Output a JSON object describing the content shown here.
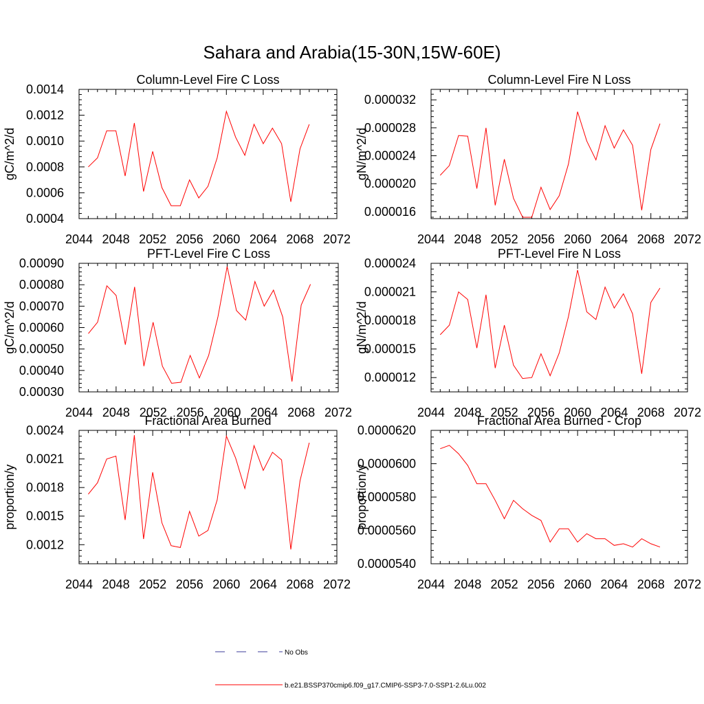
{
  "figure_title": "Sahara and Arabia(15-30N,15W-60E)",
  "colors": {
    "model_line": "#ff0000",
    "obs_line": "#3b3b9a",
    "axis": "#000000"
  },
  "legend": [
    {
      "label": "No Obs",
      "style": "dashed",
      "color": "#3b3b9a"
    },
    {
      "label": "b.e21.BSSP370cmip6.f09_g17.CMIP6-SSP3-7.0-SSP1-2.6Lu.002",
      "style": "solid",
      "color": "#ff0000"
    }
  ],
  "chart_data": [
    {
      "type": "line",
      "title": "Column-Level Fire C Loss",
      "ylabel": "gC/m^2/d",
      "xlim": [
        2044,
        2072
      ],
      "ylim": [
        0.0004,
        0.0014
      ],
      "xticks": [
        2044,
        2048,
        2052,
        2056,
        2060,
        2064,
        2068,
        2072
      ],
      "xtick_labels": [
        "2044",
        "2048",
        "2052",
        "2056",
        "2060",
        "2064",
        "2068",
        "2072"
      ],
      "yticks": [
        0.0004,
        0.0006,
        0.0008,
        0.001,
        0.0012,
        0.0014
      ],
      "ytick_labels": [
        "0.0004",
        "0.0006",
        "0.0008",
        "0.0010",
        "0.0012",
        "0.0014"
      ],
      "x": [
        2045,
        2046,
        2047,
        2048,
        2049,
        2050,
        2051,
        2052,
        2053,
        2054,
        2055,
        2056,
        2057,
        2058,
        2059,
        2060,
        2061,
        2062,
        2063,
        2064,
        2065,
        2066,
        2067,
        2068,
        2069
      ],
      "y": [
        0.0008,
        0.00087,
        0.00108,
        0.00108,
        0.00073,
        0.00114,
        0.00061,
        0.00092,
        0.00064,
        0.0005,
        0.0005,
        0.0007,
        0.00056,
        0.00065,
        0.00087,
        0.00123,
        0.00103,
        0.00089,
        0.00113,
        0.00098,
        0.0011,
        0.00098,
        0.00053,
        0.00094,
        0.00113
      ]
    },
    {
      "type": "line",
      "title": "Column-Level Fire N Loss",
      "ylabel": "gN/m^2/d",
      "xlim": [
        2044,
        2072
      ],
      "ylim": [
        1.5e-05,
        3.35e-05
      ],
      "xticks": [
        2044,
        2048,
        2052,
        2056,
        2060,
        2064,
        2068,
        2072
      ],
      "xtick_labels": [
        "2044",
        "2048",
        "2052",
        "2056",
        "2060",
        "2064",
        "2068",
        "2072"
      ],
      "yticks": [
        1.6e-05,
        2e-05,
        2.4e-05,
        2.8e-05,
        3.2e-05
      ],
      "ytick_labels": [
        "0.000016",
        "0.000020",
        "0.000024",
        "0.000028",
        "0.000032"
      ],
      "x": [
        2045,
        2046,
        2047,
        2048,
        2049,
        2050,
        2051,
        2052,
        2053,
        2054,
        2055,
        2056,
        2057,
        2058,
        2059,
        2060,
        2061,
        2062,
        2063,
        2064,
        2065,
        2066,
        2067,
        2068,
        2069
      ],
      "y": [
        2.12e-05,
        2.26e-05,
        2.69e-05,
        2.68e-05,
        1.93e-05,
        2.8e-05,
        1.69e-05,
        2.35e-05,
        1.79e-05,
        1.52e-05,
        1.52e-05,
        1.95e-05,
        1.63e-05,
        1.83e-05,
        2.28e-05,
        3.03e-05,
        2.61e-05,
        2.34e-05,
        2.83e-05,
        2.51e-05,
        2.77e-05,
        2.55e-05,
        1.62e-05,
        2.49e-05,
        2.86e-05
      ]
    },
    {
      "type": "line",
      "title": "PFT-Level Fire C Loss",
      "ylabel": "gC/m^2/d",
      "xlim": [
        2044,
        2072
      ],
      "ylim": [
        0.0003,
        0.0009
      ],
      "xticks": [
        2044,
        2048,
        2052,
        2056,
        2060,
        2064,
        2068,
        2072
      ],
      "xtick_labels": [
        "2044",
        "2048",
        "2052",
        "2056",
        "2060",
        "2064",
        "2068",
        "2072"
      ],
      "yticks": [
        0.0003,
        0.0004,
        0.0005,
        0.0006,
        0.0007,
        0.0008,
        0.0009
      ],
      "ytick_labels": [
        "0.00030",
        "0.00040",
        "0.00050",
        "0.00060",
        "0.00070",
        "0.00080",
        "0.00090"
      ],
      "x": [
        2045,
        2046,
        2047,
        2048,
        2049,
        2050,
        2051,
        2052,
        2053,
        2054,
        2055,
        2056,
        2057,
        2058,
        2059,
        2060,
        2061,
        2062,
        2063,
        2064,
        2065,
        2066,
        2067,
        2068,
        2069
      ],
      "y": [
        0.000572,
        0.000625,
        0.000795,
        0.00075,
        0.00052,
        0.00079,
        0.00042,
        0.000625,
        0.00042,
        0.00034,
        0.000345,
        0.00047,
        0.000365,
        0.00047,
        0.00065,
        0.000885,
        0.00068,
        0.000635,
        0.000815,
        0.0007,
        0.000775,
        0.00065,
        0.000348,
        0.000705,
        0.000802
      ]
    },
    {
      "type": "line",
      "title": "PFT-Level Fire N Loss",
      "ylabel": "gN/m^2/d",
      "xlim": [
        2044,
        2072
      ],
      "ylim": [
        1.05e-05,
        2.4e-05
      ],
      "xticks": [
        2044,
        2048,
        2052,
        2056,
        2060,
        2064,
        2068,
        2072
      ],
      "xtick_labels": [
        "2044",
        "2048",
        "2052",
        "2056",
        "2060",
        "2064",
        "2068",
        "2072"
      ],
      "yticks": [
        1.2e-05,
        1.5e-05,
        1.8e-05,
        2.1e-05,
        2.4e-05
      ],
      "ytick_labels": [
        "0.000012",
        "0.000015",
        "0.000018",
        "0.000021",
        "0.000024"
      ],
      "x": [
        2045,
        2046,
        2047,
        2048,
        2049,
        2050,
        2051,
        2052,
        2053,
        2054,
        2055,
        2056,
        2057,
        2058,
        2059,
        2060,
        2061,
        2062,
        2063,
        2064,
        2065,
        2066,
        2067,
        2068,
        2069
      ],
      "y": [
        1.65e-05,
        1.75e-05,
        2.1e-05,
        2.02e-05,
        1.51e-05,
        2.07e-05,
        1.3e-05,
        1.75e-05,
        1.33e-05,
        1.19e-05,
        1.2e-05,
        1.45e-05,
        1.22e-05,
        1.46e-05,
        1.84e-05,
        2.33e-05,
        1.89e-05,
        1.81e-05,
        2.15e-05,
        1.93e-05,
        2.08e-05,
        1.87e-05,
        1.24e-05,
        1.99e-05,
        2.14e-05
      ]
    },
    {
      "type": "line",
      "title": "Fractional Area Burned",
      "ylabel": "proportion/y",
      "xlim": [
        2044,
        2072
      ],
      "ylim": [
        0.001,
        0.0024
      ],
      "xticks": [
        2044,
        2048,
        2052,
        2056,
        2060,
        2064,
        2068,
        2072
      ],
      "xtick_labels": [
        "2044",
        "2048",
        "2052",
        "2056",
        "2060",
        "2064",
        "2068",
        "2072"
      ],
      "yticks": [
        0.0012,
        0.0015,
        0.0018,
        0.0021,
        0.0024
      ],
      "ytick_labels": [
        "0.0012",
        "0.0015",
        "0.0018",
        "0.0021",
        "0.0024"
      ],
      "x": [
        2045,
        2046,
        2047,
        2048,
        2049,
        2050,
        2051,
        2052,
        2053,
        2054,
        2055,
        2056,
        2057,
        2058,
        2059,
        2060,
        2061,
        2062,
        2063,
        2064,
        2065,
        2066,
        2067,
        2068,
        2069
      ],
      "y": [
        0.00173,
        0.00185,
        0.0021,
        0.00213,
        0.00146,
        0.00235,
        0.00126,
        0.00196,
        0.00143,
        0.00119,
        0.00117,
        0.00155,
        0.00129,
        0.00135,
        0.00167,
        0.00234,
        0.00211,
        0.00179,
        0.00224,
        0.00198,
        0.00217,
        0.00209,
        0.00115,
        0.00187,
        0.00227
      ]
    },
    {
      "type": "line",
      "title": "Fractional Area Burned - Crop",
      "ylabel": "proportion/y",
      "xlim": [
        2044,
        2072
      ],
      "ylim": [
        5.4e-05,
        6.2e-05
      ],
      "xticks": [
        2044,
        2048,
        2052,
        2056,
        2060,
        2064,
        2068,
        2072
      ],
      "xtick_labels": [
        "2044",
        "2048",
        "2052",
        "2056",
        "2060",
        "2064",
        "2068",
        "2072"
      ],
      "yticks": [
        5.4e-05,
        5.6e-05,
        5.8e-05,
        6e-05,
        6.2e-05
      ],
      "ytick_labels": [
        "0.0000540",
        "0.0000560",
        "0.0000580",
        "0.0000600",
        "0.0000620"
      ],
      "x": [
        2045,
        2046,
        2047,
        2048,
        2049,
        2050,
        2051,
        2052,
        2053,
        2054,
        2055,
        2056,
        2057,
        2058,
        2059,
        2060,
        2061,
        2062,
        2063,
        2064,
        2065,
        2066,
        2067,
        2068,
        2069
      ],
      "y": [
        6.09e-05,
        6.11e-05,
        6.06e-05,
        5.99e-05,
        5.88e-05,
        5.88e-05,
        5.78e-05,
        5.67e-05,
        5.78e-05,
        5.73e-05,
        5.69e-05,
        5.66e-05,
        5.53e-05,
        5.61e-05,
        5.61e-05,
        5.53e-05,
        5.58e-05,
        5.55e-05,
        5.55e-05,
        5.51e-05,
        5.52e-05,
        5.5e-05,
        5.55e-05,
        5.52e-05,
        5.5e-05
      ]
    }
  ]
}
